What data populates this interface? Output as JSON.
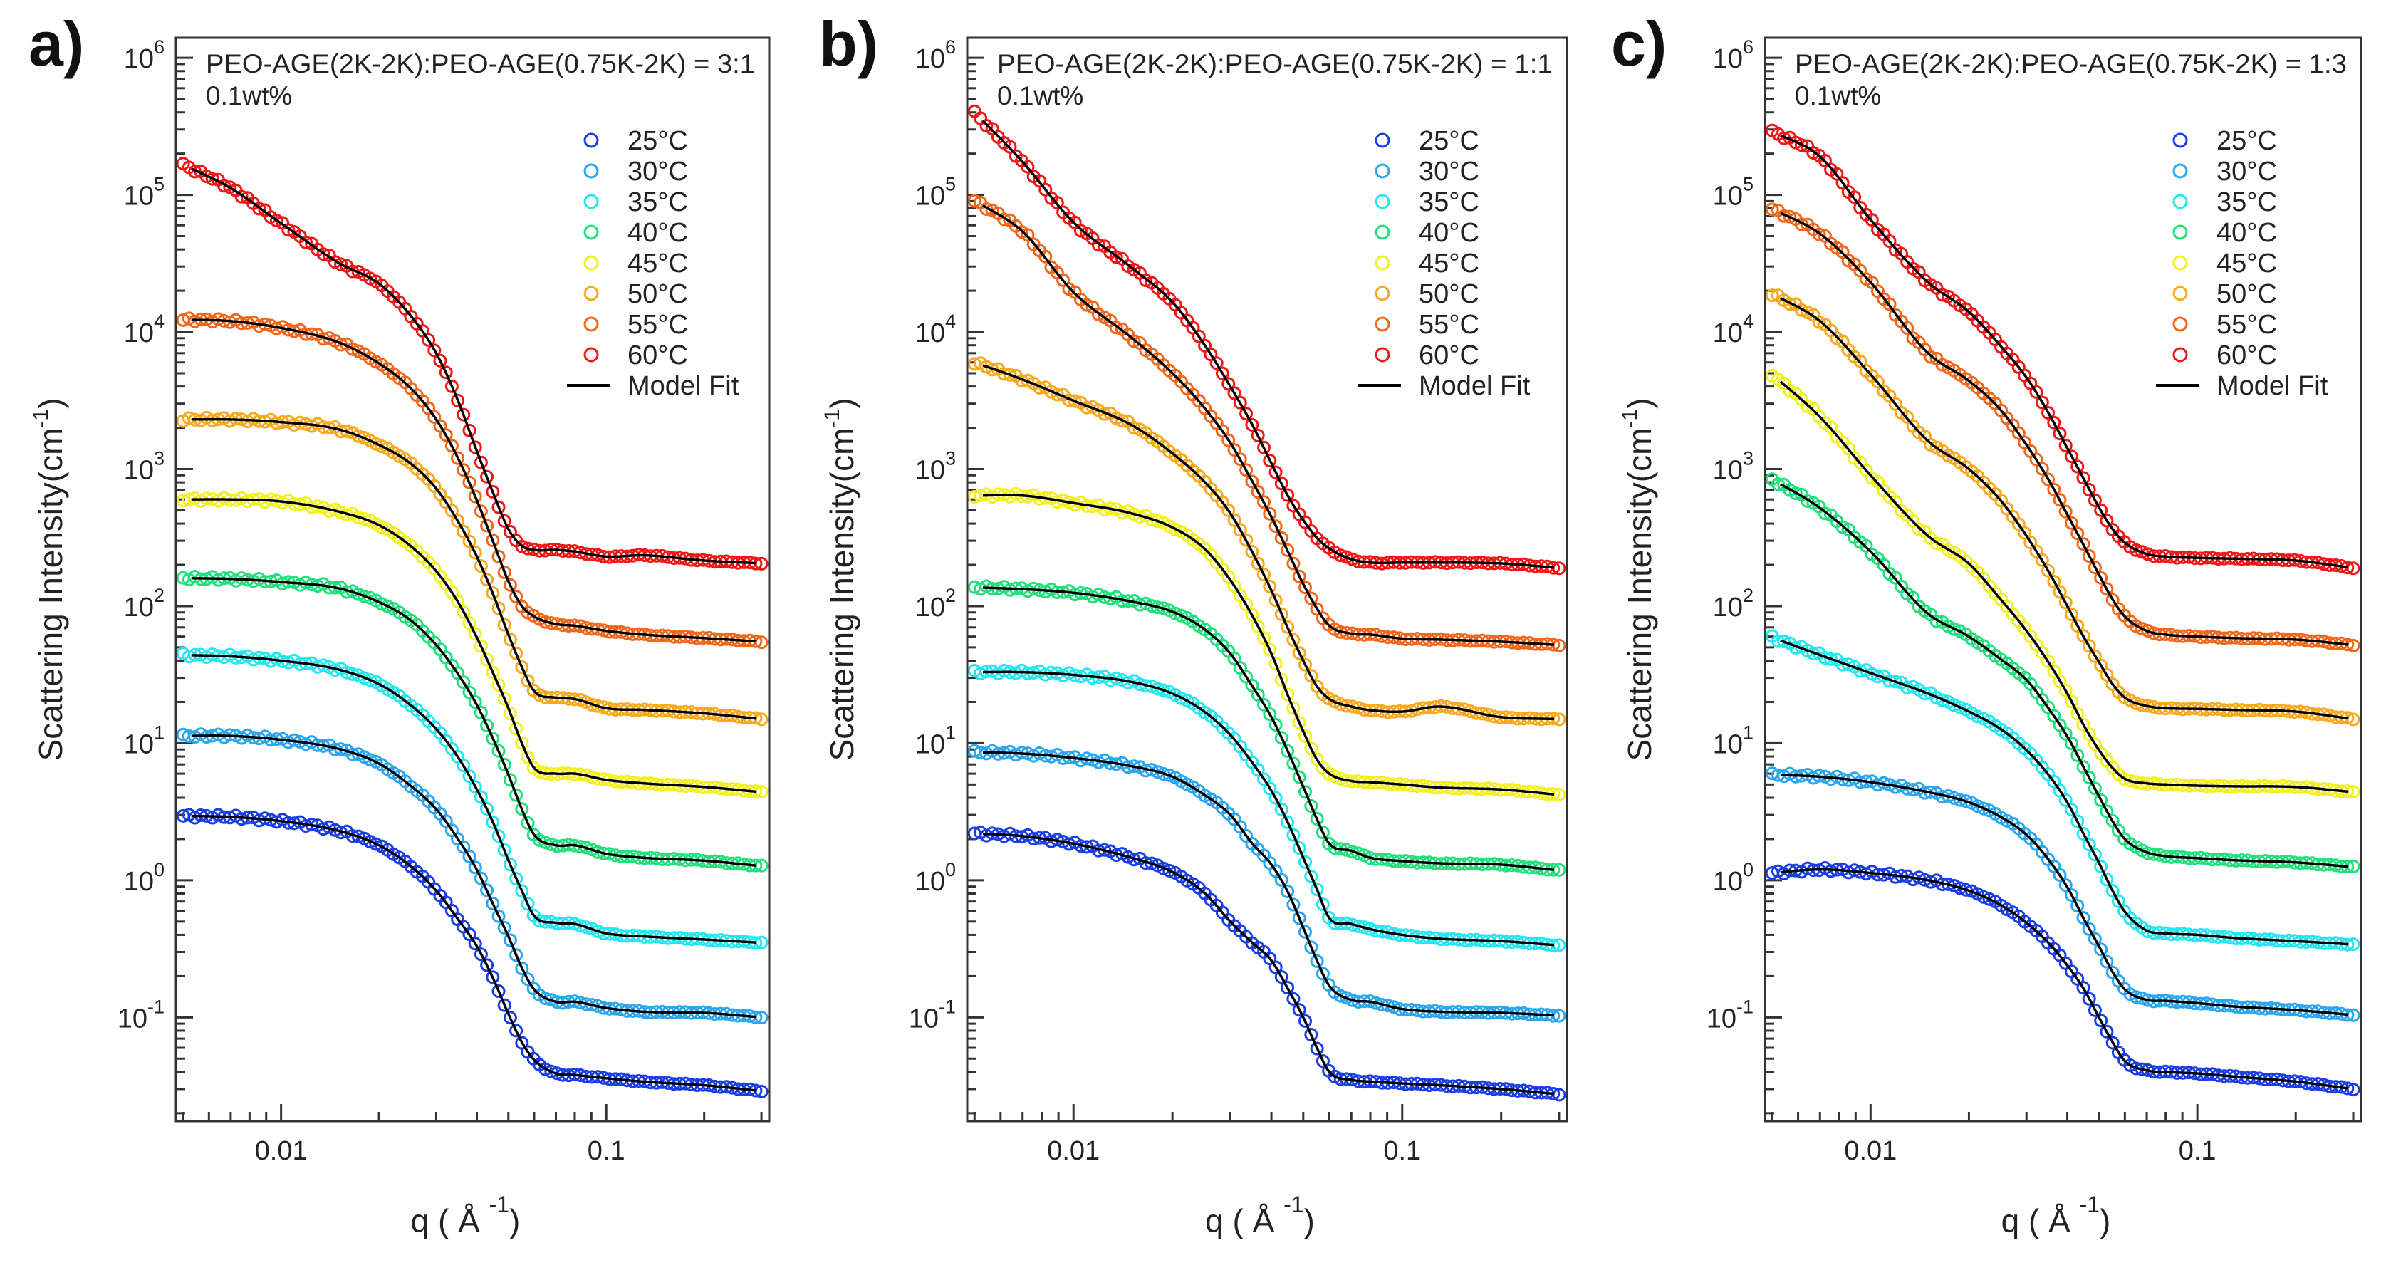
{
  "chart_data": [
    {
      "type": "scatter",
      "panel_label": "a)",
      "title": "PEO-AGE(2K-2K):PEO-AGE(0.75K-2K) = 3:1",
      "subtitle": "0.1wt%",
      "xlabel": {
        "text": "q ( Å ",
        "sup": "-1",
        "close": ")"
      },
      "ylabel": {
        "text": "Scattering Intensity(cm",
        "sup": "-1",
        "close": ")"
      },
      "xscale": "log",
      "yscale": "log",
      "xlim": [
        0.00475,
        0.317
      ],
      "ylim": [
        0.0175,
        1400000
      ],
      "x_tick_labels": [
        {
          "value": 0.01,
          "label": "0.01"
        },
        {
          "value": 0.1,
          "label": "0.1"
        }
      ],
      "y_tick_base": "10",
      "y_tick_exponents": [
        "-1",
        "0",
        "1",
        "2",
        "3",
        "4",
        "5",
        "6"
      ],
      "grid": false,
      "legend_position": "top-right",
      "fit_label": "Model Fit",
      "q": [
        0.005,
        0.007,
        0.01,
        0.015,
        0.02,
        0.025,
        0.03,
        0.035,
        0.04,
        0.045,
        0.05,
        0.055,
        0.06,
        0.07,
        0.08,
        0.1,
        0.13,
        0.2,
        0.3
      ],
      "series": [
        {
          "name": "25°C",
          "color": "#1a3ee6",
          "values": [
            2.95,
            2.9,
            2.7,
            2.3,
            1.8,
            1.27,
            0.84,
            0.52,
            0.33,
            0.19,
            0.106,
            0.066,
            0.049,
            0.039,
            0.038,
            0.036,
            0.034,
            0.032,
            0.029
          ]
        },
        {
          "name": "30°C",
          "color": "#2aa6f0",
          "values": [
            11.3,
            11.3,
            10.6,
            9.1,
            7.1,
            4.9,
            3.3,
            2.0,
            1.19,
            0.66,
            0.39,
            0.23,
            0.16,
            0.13,
            0.13,
            0.117,
            0.11,
            0.108,
            0.1
          ]
        },
        {
          "name": "35°C",
          "color": "#22e6f0",
          "values": [
            44,
            43,
            40,
            34.5,
            27,
            19,
            12.7,
            7.9,
            4.6,
            2.6,
            1.4,
            0.84,
            0.55,
            0.49,
            0.48,
            0.41,
            0.39,
            0.37,
            0.35
          ]
        },
        {
          "name": "40°C",
          "color": "#20e07c",
          "values": [
            160,
            158,
            150,
            135,
            107,
            79,
            52,
            32,
            19,
            10.6,
            5.9,
            3.3,
            2.15,
            1.8,
            1.8,
            1.56,
            1.46,
            1.39,
            1.27
          ]
        },
        {
          "name": "45°C",
          "color": "#f2f01a",
          "values": [
            600,
            600,
            580,
            490,
            390,
            275,
            180,
            107,
            59,
            32,
            18,
            10,
            6.6,
            6.0,
            6.0,
            5.4,
            5.1,
            4.8,
            4.4
          ]
        },
        {
          "name": "50°C",
          "color": "#f8a818",
          "values": [
            2300,
            2300,
            2200,
            1950,
            1500,
            1100,
            720,
            415,
            230,
            120,
            62,
            36,
            24,
            21.5,
            21,
            18,
            17.5,
            16.5,
            15
          ]
        },
        {
          "name": "55°C",
          "color": "#f2661a",
          "values": [
            12300,
            12000,
            10700,
            8400,
            5900,
            3900,
            2300,
            1200,
            590,
            290,
            152,
            100,
            84,
            74,
            72,
            66,
            62,
            58.5,
            55
          ]
        },
        {
          "name": "60°C",
          "color": "#f01616",
          "values": [
            166000,
            112000,
            62000,
            32000,
            22500,
            13200,
            7000,
            3150,
            1350,
            660,
            365,
            275,
            257,
            257,
            250,
            230,
            235,
            215,
            205
          ]
        }
      ]
    },
    {
      "type": "scatter",
      "panel_label": "b)",
      "title": "PEO-AGE(2K-2K):PEO-AGE(0.75K-2K) = 1:1",
      "subtitle": "0.1wt%",
      "xlabel": {
        "text": "q ( Å ",
        "sup": "-1",
        "close": ")"
      },
      "ylabel": {
        "text": "Scattering Intensity(cm",
        "sup": "-1",
        "close": ")"
      },
      "xscale": "log",
      "yscale": "log",
      "xlim": [
        0.00475,
        0.317
      ],
      "ylim": [
        0.0175,
        1400000
      ],
      "x_tick_labels": [
        {
          "value": 0.01,
          "label": "0.01"
        },
        {
          "value": 0.1,
          "label": "0.1"
        }
      ],
      "y_tick_base": "10",
      "y_tick_exponents": [
        "-1",
        "0",
        "1",
        "2",
        "3",
        "4",
        "5",
        "6"
      ],
      "grid": false,
      "legend_position": "top-right",
      "fit_label": "Model Fit",
      "q": [
        0.005,
        0.007,
        0.01,
        0.015,
        0.02,
        0.025,
        0.03,
        0.035,
        0.04,
        0.045,
        0.05,
        0.055,
        0.06,
        0.07,
        0.08,
        0.1,
        0.13,
        0.2,
        0.3
      ],
      "series": [
        {
          "name": "25°C",
          "color": "#1a3ee6",
          "values": [
            2.2,
            2.1,
            1.85,
            1.46,
            1.15,
            0.81,
            0.5,
            0.35,
            0.26,
            0.16,
            0.1,
            0.06,
            0.04,
            0.035,
            0.034,
            0.033,
            0.032,
            0.03,
            0.0275
          ]
        },
        {
          "name": "30°C",
          "color": "#2aa6f0",
          "values": [
            8.6,
            8.4,
            7.8,
            6.8,
            5.7,
            4.2,
            3.0,
            1.85,
            1.3,
            0.81,
            0.45,
            0.26,
            0.17,
            0.134,
            0.13,
            0.115,
            0.11,
            0.108,
            0.103
          ]
        },
        {
          "name": "35°C",
          "color": "#22e6f0",
          "values": [
            33,
            33,
            31.5,
            28,
            23,
            17,
            11.5,
            7.2,
            4.5,
            2.6,
            1.46,
            0.86,
            0.53,
            0.48,
            0.44,
            0.4,
            0.375,
            0.36,
            0.335
          ]
        },
        {
          "name": "40°C",
          "color": "#20e07c",
          "values": [
            137,
            133,
            125,
            108,
            91,
            68,
            45,
            26,
            15.5,
            8.6,
            4.8,
            2.8,
            1.85,
            1.64,
            1.46,
            1.38,
            1.33,
            1.3,
            1.18
          ]
        },
        {
          "name": "45°C",
          "color": "#f2f01a",
          "values": [
            640,
            640,
            565,
            475,
            375,
            263,
            155,
            85,
            45,
            22,
            12.2,
            7.6,
            6,
            5.3,
            5.2,
            5.0,
            4.75,
            4.6,
            4.2
          ]
        },
        {
          "name": "50°C",
          "color": "#f8a818",
          "values": [
            6000,
            4500,
            3150,
            2100,
            1300,
            810,
            475,
            247,
            130,
            68,
            40,
            26,
            21,
            18.5,
            17.4,
            17,
            18.5,
            15.5,
            15
          ]
        },
        {
          "name": "55°C",
          "color": "#f2661a",
          "values": [
            91000,
            54000,
            19500,
            9100,
            5000,
            2800,
            1550,
            810,
            447,
            247,
            145,
            96,
            72,
            63,
            62,
            58,
            57,
            55,
            52
          ]
        },
        {
          "name": "60°C",
          "color": "#f01616",
          "values": [
            400000,
            174000,
            63000,
            29500,
            16500,
            8100,
            4000,
            2100,
            1100,
            630,
            425,
            315,
            263,
            220,
            208,
            208,
            208,
            205,
            190
          ]
        }
      ]
    },
    {
      "type": "scatter",
      "panel_label": "c)",
      "title": "PEO-AGE(2K-2K):PEO-AGE(0.75K-2K) = 1:3",
      "subtitle": "0.1wt%",
      "xlabel": {
        "text": "q ( Å ",
        "sup": "-1",
        "close": ")"
      },
      "ylabel": {
        "text": "Scattering Intensity(cm",
        "sup": "-1",
        "close": ")"
      },
      "xscale": "log",
      "yscale": "log",
      "xlim": [
        0.00475,
        0.317
      ],
      "ylim": [
        0.0175,
        1400000
      ],
      "x_tick_labels": [
        {
          "value": 0.01,
          "label": "0.01"
        },
        {
          "value": 0.1,
          "label": "0.1"
        }
      ],
      "y_tick_base": "10",
      "y_tick_exponents": [
        "-1",
        "0",
        "1",
        "2",
        "3",
        "4",
        "5",
        "6"
      ],
      "grid": false,
      "legend_position": "top-right",
      "fit_label": "Model Fit",
      "q": [
        0.005,
        0.007,
        0.01,
        0.015,
        0.02,
        0.025,
        0.03,
        0.035,
        0.04,
        0.045,
        0.05,
        0.055,
        0.06,
        0.07,
        0.08,
        0.1,
        0.13,
        0.2,
        0.3
      ],
      "series": [
        {
          "name": "25°C",
          "color": "#1a3ee6",
          "values": [
            1.13,
            1.2,
            1.13,
            1.0,
            0.84,
            0.66,
            0.49,
            0.35,
            0.24,
            0.16,
            0.1,
            0.066,
            0.048,
            0.041,
            0.04,
            0.039,
            0.037,
            0.034,
            0.03
          ]
        },
        {
          "name": "30°C",
          "color": "#2aa6f0",
          "values": [
            5.9,
            5.7,
            5.2,
            4.4,
            3.7,
            2.9,
            2.15,
            1.42,
            0.89,
            0.52,
            0.33,
            0.215,
            0.16,
            0.134,
            0.132,
            0.127,
            0.12,
            0.113,
            0.104
          ]
        },
        {
          "name": "35°C",
          "color": "#22e6f0",
          "values": [
            59,
            44,
            32.5,
            23,
            17,
            12.7,
            8.9,
            5.9,
            3.7,
            2.15,
            1.34,
            0.84,
            0.59,
            0.43,
            0.41,
            0.4,
            0.38,
            0.36,
            0.34
          ]
        },
        {
          "name": "40°C",
          "color": "#20e07c",
          "values": [
            840,
            520,
            250,
            88,
            60,
            41,
            29,
            18,
            11.2,
            6.6,
            4.1,
            2.7,
            2.0,
            1.6,
            1.5,
            1.45,
            1.4,
            1.35,
            1.25
          ]
        },
        {
          "name": "45°C",
          "color": "#f2f01a",
          "values": [
            4900,
            2400,
            900,
            325,
            204,
            112,
            66,
            39,
            23,
            13.4,
            8.9,
            6.6,
            5.5,
            5.1,
            5.0,
            4.9,
            4.85,
            4.8,
            4.4
          ]
        },
        {
          "name": "50°C",
          "color": "#f8a818",
          "values": [
            19000,
            12000,
            4900,
            1600,
            1000,
            590,
            325,
            180,
            100,
            59,
            39,
            27,
            21.5,
            18.7,
            18,
            17.8,
            17.5,
            17,
            15
          ]
        },
        {
          "name": "55°C",
          "color": "#f2661a",
          "values": [
            79000,
            52000,
            23000,
            7000,
            4400,
            2700,
            1500,
            840,
            465,
            275,
            170,
            112,
            84,
            66,
            62,
            60,
            58.5,
            57,
            52
          ]
        },
        {
          "name": "60°C",
          "color": "#f01616",
          "values": [
            290000,
            190000,
            66000,
            23000,
            14000,
            7900,
            4650,
            2570,
            1420,
            840,
            525,
            365,
            290,
            240,
            230,
            225,
            222,
            215,
            190
          ]
        }
      ]
    }
  ]
}
